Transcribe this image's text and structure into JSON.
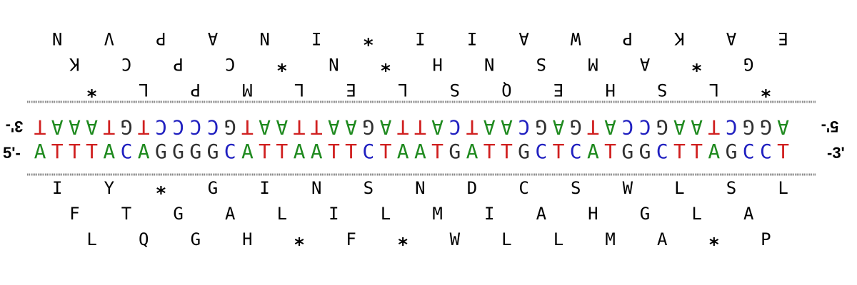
{
  "colors": {
    "A": "#1f8a1f",
    "T": "#d02020",
    "G": "#303030",
    "C": "#2020c0",
    "rule": "#8a8a8a"
  },
  "icons": {
    "stop_codon": "asterisk-icon"
  },
  "labels": {
    "top_left_end": "3'-",
    "top_right_end": "5'-",
    "bottom_left_end": "5'-",
    "bottom_right_end": "-3'"
  },
  "sequences": {
    "forward": "ATTTACAGGGGCATTAATTCTAATGATTGCTCATGGCTTAGCCT",
    "reverse_complement": "TAAATGTCCCCGTAATTAAGATTACTAACGAGTACCGAATCGGA"
  },
  "translations": {
    "forward": [
      [
        "I",
        "Y",
        "*",
        "G",
        "I",
        "N",
        "S",
        "N",
        "D",
        "C",
        "S",
        "W",
        "L",
        "S",
        "L"
      ],
      [
        "F",
        "T",
        "G",
        "A",
        "L",
        "I",
        "L",
        "M",
        "I",
        "A",
        "H",
        "G",
        "L",
        "A"
      ],
      [
        "L",
        "Q",
        "G",
        "H",
        "*",
        "F",
        "*",
        "W",
        "L",
        "L",
        "M",
        "A",
        "*",
        "P"
      ]
    ],
    "reverse": [
      [
        "N",
        "V",
        "P",
        "A",
        "N",
        "I",
        "*",
        "I",
        "I",
        "A",
        "W",
        "P",
        "K",
        "A",
        "E"
      ],
      [
        "K",
        "C",
        "P",
        "C",
        "*",
        "N",
        "*",
        "H",
        "N",
        "S",
        "M",
        "A",
        "*",
        "G"
      ],
      [
        "*",
        "L",
        "P",
        "M",
        "L",
        "E",
        "L",
        "S",
        "Q",
        "E",
        "H",
        "S",
        "L",
        "*"
      ]
    ]
  }
}
